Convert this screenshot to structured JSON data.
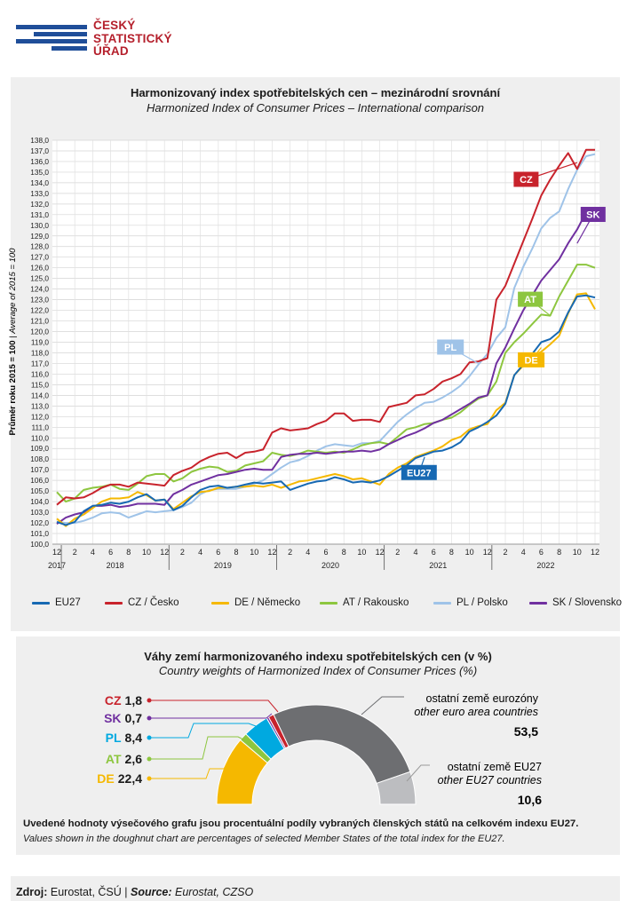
{
  "header": {
    "logo_lines": [
      "ČESKÝ",
      "STATISTICKÝ",
      "ÚŘAD"
    ]
  },
  "chart_data": [
    {
      "type": "line",
      "title": "Harmonizovaný index spotřebitelských cen – mezinárodní srovnání",
      "subtitle": "Harmonized Index of Consumer Prices – International comparison",
      "ylabel": "Průměr roku 2015 = 100",
      "ylabel_en": "Average of 2015 = 100",
      "ylim": [
        100,
        138
      ],
      "ystep": 1,
      "grid": true,
      "legend_position": "bottom",
      "x_tick_labels": [
        "12",
        "2",
        "4",
        "6",
        "8",
        "10",
        "12",
        "2",
        "4",
        "6",
        "8",
        "10",
        "12",
        "2",
        "4",
        "6",
        "8",
        "10",
        "12",
        "2",
        "4",
        "6",
        "8",
        "10",
        "12",
        "2",
        "4",
        "6",
        "8",
        "10",
        "12"
      ],
      "year_labels": [
        "2017",
        "2018",
        "2019",
        "2020",
        "2021",
        "2022"
      ],
      "x": [
        "2017-12",
        "2018-01",
        "2018-02",
        "2018-03",
        "2018-04",
        "2018-05",
        "2018-06",
        "2018-07",
        "2018-08",
        "2018-09",
        "2018-10",
        "2018-11",
        "2018-12",
        "2019-01",
        "2019-02",
        "2019-03",
        "2019-04",
        "2019-05",
        "2019-06",
        "2019-07",
        "2019-08",
        "2019-09",
        "2019-10",
        "2019-11",
        "2019-12",
        "2020-01",
        "2020-02",
        "2020-03",
        "2020-04",
        "2020-05",
        "2020-06",
        "2020-07",
        "2020-08",
        "2020-09",
        "2020-10",
        "2020-11",
        "2020-12",
        "2021-01",
        "2021-02",
        "2021-03",
        "2021-04",
        "2021-05",
        "2021-06",
        "2021-07",
        "2021-08",
        "2021-09",
        "2021-10",
        "2021-11",
        "2021-12",
        "2022-01",
        "2022-02",
        "2022-03",
        "2022-04",
        "2022-05",
        "2022-06",
        "2022-07",
        "2022-08",
        "2022-09",
        "2022-10",
        "2022-11",
        "2022-12"
      ],
      "series": [
        {
          "name": "EU27",
          "color": "#1769b3",
          "tag": "EU27",
          "values": [
            102.1,
            101.8,
            102.1,
            103.1,
            103.6,
            103.7,
            103.9,
            103.8,
            104.0,
            104.4,
            104.7,
            104.1,
            104.2,
            103.2,
            103.6,
            104.4,
            105.1,
            105.4,
            105.5,
            105.3,
            105.4,
            105.6,
            105.8,
            105.7,
            105.8,
            105.9,
            105.1,
            105.4,
            105.7,
            105.9,
            106.0,
            106.3,
            106.1,
            105.8,
            105.9,
            105.8,
            106.0,
            106.4,
            106.9,
            107.4,
            108.1,
            108.4,
            108.7,
            108.8,
            109.1,
            109.6,
            110.6,
            111.0,
            111.5,
            112.1,
            113.2,
            115.9,
            116.9,
            117.9,
            119.0,
            119.3,
            120.0,
            121.8,
            123.3,
            123.4,
            123.2
          ]
        },
        {
          "name": "CZ / Česko",
          "color": "#c8232c",
          "tag": "CZ",
          "values": [
            103.7,
            104.4,
            104.3,
            104.4,
            104.8,
            105.3,
            105.6,
            105.6,
            105.4,
            105.8,
            105.7,
            105.6,
            105.5,
            106.5,
            106.9,
            107.2,
            107.8,
            108.2,
            108.5,
            108.6,
            108.1,
            108.6,
            108.7,
            108.9,
            110.5,
            110.9,
            110.7,
            110.8,
            110.9,
            111.3,
            111.6,
            112.3,
            112.3,
            111.6,
            111.7,
            111.7,
            111.5,
            112.9,
            113.1,
            113.3,
            114.0,
            114.1,
            114.6,
            115.3,
            115.6,
            116.0,
            117.1,
            117.2,
            117.5,
            123.0,
            124.3,
            126.4,
            128.5,
            130.6,
            132.8,
            134.3,
            135.6,
            136.8,
            135.3,
            137.1,
            137.1
          ]
        },
        {
          "name": "DE / Německo",
          "color": "#f5b800",
          "tag": "DE",
          "values": [
            102.4,
            101.7,
            102.4,
            102.8,
            103.4,
            104.0,
            104.3,
            104.3,
            104.4,
            104.9,
            104.6,
            104.1,
            104.2,
            103.3,
            103.9,
            104.5,
            104.9,
            105.0,
            105.3,
            105.3,
            105.4,
            105.4,
            105.5,
            105.4,
            105.6,
            105.3,
            105.6,
            105.9,
            106.0,
            106.2,
            106.4,
            106.6,
            106.4,
            106.1,
            106.2,
            105.9,
            105.6,
            106.6,
            107.2,
            107.6,
            108.2,
            108.5,
            108.8,
            109.2,
            109.8,
            110.1,
            110.8,
            111.1,
            111.3,
            112.6,
            113.3,
            115.9,
            116.8,
            117.7,
            118.1,
            118.8,
            119.6,
            121.7,
            123.5,
            123.6,
            122.1
          ]
        },
        {
          "name": "AT / Rakousko",
          "color": "#8dc63f",
          "tag": "AT",
          "values": [
            104.9,
            104.0,
            104.3,
            105.1,
            105.3,
            105.4,
            105.6,
            105.2,
            105.1,
            105.7,
            106.4,
            106.6,
            106.6,
            105.9,
            106.2,
            106.8,
            107.1,
            107.3,
            107.2,
            106.8,
            106.9,
            107.4,
            107.6,
            107.8,
            108.6,
            108.4,
            108.3,
            108.5,
            108.8,
            108.7,
            108.6,
            108.7,
            108.6,
            108.9,
            109.3,
            109.5,
            109.6,
            109.4,
            110.1,
            110.8,
            111.0,
            111.3,
            111.4,
            111.7,
            111.9,
            112.4,
            113.1,
            113.7,
            114.0,
            115.3,
            118.0,
            119.0,
            119.8,
            120.7,
            121.6,
            121.5,
            123.3,
            124.8,
            126.3,
            126.3,
            126.0
          ]
        },
        {
          "name": "PL / Polsko",
          "color": "#9fc3e8",
          "tag": "PL",
          "values": [
            102.1,
            102.0,
            102.0,
            102.2,
            102.5,
            102.9,
            103.0,
            102.9,
            102.5,
            102.8,
            103.1,
            103.0,
            103.1,
            103.2,
            103.5,
            103.9,
            104.7,
            105.1,
            105.2,
            105.2,
            105.2,
            105.4,
            105.7,
            106.0,
            106.6,
            107.2,
            107.7,
            107.9,
            108.3,
            108.8,
            109.2,
            109.4,
            109.3,
            109.2,
            109.5,
            109.5,
            109.7,
            110.6,
            111.5,
            112.2,
            112.8,
            113.3,
            113.4,
            113.8,
            114.3,
            114.9,
            115.8,
            116.9,
            117.9,
            119.4,
            120.4,
            124.1,
            126.1,
            127.8,
            129.7,
            130.7,
            131.3,
            133.4,
            135.2,
            136.5,
            136.7
          ]
        },
        {
          "name": "SK / Slovensko",
          "color": "#7030a0",
          "tag": "SK",
          "values": [
            101.9,
            102.5,
            102.8,
            103.0,
            103.6,
            103.6,
            103.7,
            103.5,
            103.6,
            103.8,
            103.8,
            103.8,
            103.7,
            104.7,
            105.1,
            105.6,
            105.9,
            106.2,
            106.5,
            106.6,
            106.8,
            107.0,
            107.1,
            107.0,
            107.0,
            108.2,
            108.4,
            108.5,
            108.5,
            108.6,
            108.5,
            108.6,
            108.7,
            108.7,
            108.8,
            108.7,
            108.9,
            109.4,
            109.8,
            110.2,
            110.5,
            110.9,
            111.4,
            111.7,
            112.2,
            112.7,
            113.2,
            113.8,
            114.0,
            117.0,
            118.5,
            120.3,
            122.0,
            123.4,
            124.8,
            125.8,
            126.8,
            128.3,
            129.6,
            131.2,
            131.4
          ]
        }
      ]
    },
    {
      "type": "pie",
      "title": "Váhy zemí harmonizovaného indexu spotřebitelských cen (v %)",
      "subtitle": "Country weights of Harmonized Index of Consumer Prices (%)",
      "slices": [
        {
          "label": "DE",
          "value": 22.4,
          "color": "#f5b800"
        },
        {
          "label": "AT",
          "value": 2.6,
          "color": "#8dc63f"
        },
        {
          "label": "PL",
          "value": 8.4,
          "color": "#00a9e0"
        },
        {
          "label": "SK",
          "value": 0.7,
          "color": "#7030a0"
        },
        {
          "label": "CZ",
          "value": 1.8,
          "color": "#c8232c"
        },
        {
          "label": "ostatní země eurozóny",
          "label_en": "other euro area countries",
          "value": 53.5,
          "color": "#6d6e71"
        },
        {
          "label": "ostatní země EU27",
          "label_en": "other EU27 countries",
          "value": 10.6,
          "color": "#bcbdc0"
        }
      ],
      "value_texts": {
        "CZ": "1,8",
        "SK": "0,7",
        "PL": "8,4",
        "AT": "2,6",
        "DE": "22,4",
        "euro": "53,5",
        "eu27": "10,6"
      },
      "note": "Uvedené hodnoty výsečového grafu jsou procentuální podíly vybraných členských států na celkovém indexu EU27.",
      "note_en": "Values shown in the doughnut chart are percentages of selected Member States of the total index for the EU27."
    }
  ],
  "source": {
    "label_cs": "Zdroj:",
    "value_cs": " Eurostat, ČSÚ | ",
    "label_en": "Source:",
    "value_en": " Eurostat, CZSO"
  }
}
